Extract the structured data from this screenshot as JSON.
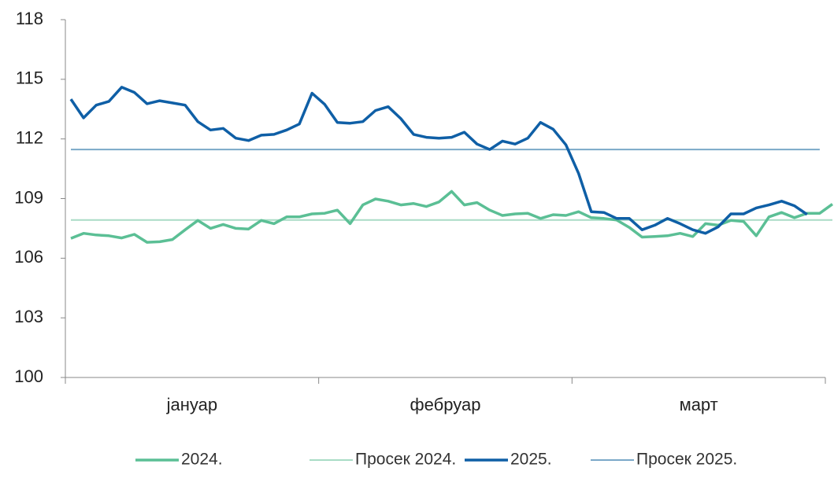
{
  "chart_data": {
    "type": "line",
    "categories": [
      null,
      null,
      null,
      null,
      null,
      null,
      null,
      null,
      null,
      null,
      null,
      null,
      null,
      null,
      null,
      null,
      null,
      null,
      null,
      null,
      null,
      null,
      null,
      null,
      null,
      null,
      null,
      null,
      null,
      null,
      null,
      null,
      null,
      null,
      null,
      null,
      null,
      null,
      null,
      null,
      null,
      null,
      null,
      null,
      null,
      null,
      null,
      null,
      null,
      null,
      null,
      null,
      null,
      null,
      null,
      null,
      null,
      null,
      null,
      null,
      null
    ],
    "month_labels": [
      "јануар",
      "фебруар",
      "март"
    ],
    "ylim": [
      100,
      118
    ],
    "yticks": [
      100,
      103,
      106,
      109,
      112,
      115,
      118
    ],
    "series": [
      {
        "name": "2024.",
        "color": "#5bbf95",
        "width": 3.5,
        "values": [
          107.0,
          107.25,
          107.17,
          107.13,
          107.02,
          107.2,
          106.8,
          106.83,
          106.94,
          107.43,
          107.9,
          107.5,
          107.7,
          107.5,
          107.47,
          107.9,
          107.74,
          108.08,
          108.08,
          108.23,
          108.26,
          108.42,
          107.74,
          108.68,
          108.98,
          108.87,
          108.68,
          108.75,
          108.6,
          108.83,
          109.36,
          108.68,
          108.8,
          108.42,
          108.15,
          108.23,
          108.26,
          108.0,
          108.19,
          108.15,
          108.34,
          108.04,
          108.0,
          107.92,
          107.55,
          107.06,
          107.09,
          107.13,
          107.25,
          107.09,
          107.74,
          107.66,
          107.9,
          107.85,
          107.13,
          108.08,
          108.3,
          108.04,
          108.26,
          108.26,
          108.72
        ]
      },
      {
        "name": "Просек 2024.",
        "color": "#a8dcc5",
        "width": 2,
        "values": [
          107.92,
          107.92,
          107.92,
          107.92,
          107.92,
          107.92,
          107.92,
          107.92,
          107.92,
          107.92,
          107.92,
          107.92,
          107.92,
          107.92,
          107.92,
          107.92,
          107.92,
          107.92,
          107.92,
          107.92,
          107.92,
          107.92,
          107.92,
          107.92,
          107.92,
          107.92,
          107.92,
          107.92,
          107.92,
          107.92,
          107.92,
          107.92,
          107.92,
          107.92,
          107.92,
          107.92,
          107.92,
          107.92,
          107.92,
          107.92,
          107.92,
          107.92,
          107.92,
          107.92,
          107.92,
          107.92,
          107.92,
          107.92,
          107.92,
          107.92,
          107.92,
          107.92,
          107.92,
          107.92,
          107.92,
          107.92,
          107.92,
          107.92,
          107.92,
          107.92,
          107.92
        ]
      },
      {
        "name": "2025.",
        "color": "#0f5fa6",
        "width": 3.5,
        "values": [
          114.0,
          113.06,
          113.7,
          113.89,
          114.6,
          114.34,
          113.77,
          113.92,
          113.81,
          113.7,
          112.87,
          112.45,
          112.53,
          112.04,
          111.92,
          112.19,
          112.23,
          112.45,
          112.75,
          114.3,
          113.74,
          112.83,
          112.79,
          112.87,
          113.43,
          113.62,
          113.02,
          112.23,
          112.08,
          112.04,
          112.08,
          112.34,
          111.74,
          111.47,
          111.89,
          111.74,
          112.04,
          112.83,
          112.49,
          111.7,
          110.26,
          108.34,
          108.3,
          108.0,
          108.0,
          107.43,
          107.66,
          108.0,
          107.74,
          107.43,
          107.25,
          107.58,
          108.23,
          108.23,
          108.53,
          108.68,
          108.87,
          108.64,
          108.2,
          null,
          null
        ]
      },
      {
        "name": "Просек 2025.",
        "color": "#7aa8c8",
        "width": 2,
        "values": [
          111.47,
          111.47,
          111.47,
          111.47,
          111.47,
          111.47,
          111.47,
          111.47,
          111.47,
          111.47,
          111.47,
          111.47,
          111.47,
          111.47,
          111.47,
          111.47,
          111.47,
          111.47,
          111.47,
          111.47,
          111.47,
          111.47,
          111.47,
          111.47,
          111.47,
          111.47,
          111.47,
          111.47,
          111.47,
          111.47,
          111.47,
          111.47,
          111.47,
          111.47,
          111.47,
          111.47,
          111.47,
          111.47,
          111.47,
          111.47,
          111.47,
          111.47,
          111.47,
          111.47,
          111.47,
          111.47,
          111.47,
          111.47,
          111.47,
          111.47,
          111.47,
          111.47,
          111.47,
          111.47,
          111.47,
          111.47,
          111.47,
          111.47,
          111.47,
          111.47,
          null
        ]
      }
    ]
  }
}
